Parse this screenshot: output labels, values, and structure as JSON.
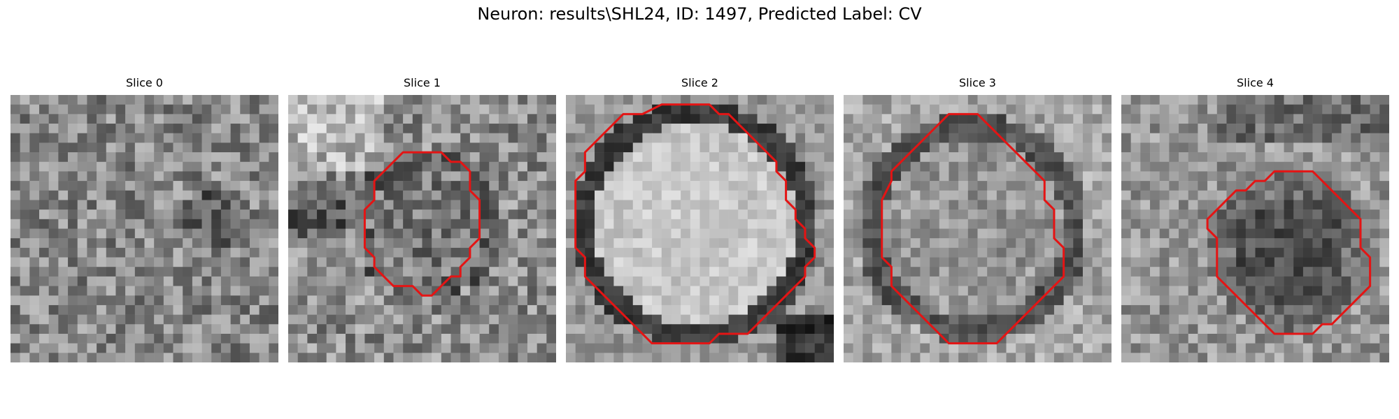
{
  "figure": {
    "title": "Neuron: results\\SHL24, ID: 1497, Predicted Label: CV"
  },
  "colors": {
    "contour": "#e41414",
    "background": "#ffffff"
  },
  "slices": [
    {
      "title": "Slice 0",
      "pattern": "noise",
      "contour": null
    },
    {
      "title": "Slice 1",
      "pattern": "small-dark-vesicle",
      "contour": [
        [
          14,
          6
        ],
        [
          16,
          6
        ],
        [
          17,
          7
        ],
        [
          18,
          7
        ],
        [
          19,
          8
        ],
        [
          19,
          10
        ],
        [
          20,
          11
        ],
        [
          20,
          15
        ],
        [
          19,
          16
        ],
        [
          19,
          17
        ],
        [
          18,
          18
        ],
        [
          18,
          19
        ],
        [
          17,
          19
        ],
        [
          16,
          20
        ],
        [
          15,
          21
        ],
        [
          14,
          21
        ],
        [
          13,
          20
        ],
        [
          11,
          20
        ],
        [
          10,
          19
        ],
        [
          9,
          18
        ],
        [
          9,
          17
        ],
        [
          8,
          16
        ],
        [
          8,
          12
        ],
        [
          9,
          11
        ],
        [
          9,
          9
        ],
        [
          10,
          8
        ],
        [
          11,
          7
        ],
        [
          12,
          6
        ]
      ]
    },
    {
      "title": "Slice 2",
      "pattern": "large-bright-vesicle",
      "contour": [
        [
          10,
          1
        ],
        [
          15,
          1
        ],
        [
          16,
          2
        ],
        [
          17,
          2
        ],
        [
          18,
          3
        ],
        [
          19,
          4
        ],
        [
          20,
          5
        ],
        [
          21,
          6
        ],
        [
          22,
          7
        ],
        [
          22,
          8
        ],
        [
          23,
          9
        ],
        [
          23,
          11
        ],
        [
          24,
          12
        ],
        [
          24,
          13
        ],
        [
          25,
          14
        ],
        [
          25,
          15
        ],
        [
          26,
          16
        ],
        [
          26,
          17
        ],
        [
          25,
          18
        ],
        [
          25,
          19
        ],
        [
          24,
          20
        ],
        [
          23,
          21
        ],
        [
          22,
          22
        ],
        [
          21,
          23
        ],
        [
          20,
          24
        ],
        [
          19,
          25
        ],
        [
          16,
          25
        ],
        [
          15,
          26
        ],
        [
          9,
          26
        ],
        [
          7,
          24
        ],
        [
          6,
          23
        ],
        [
          5,
          22
        ],
        [
          4,
          21
        ],
        [
          3,
          20
        ],
        [
          2,
          19
        ],
        [
          2,
          17
        ],
        [
          1,
          16
        ],
        [
          1,
          9
        ],
        [
          2,
          8
        ],
        [
          2,
          6
        ],
        [
          3,
          5
        ],
        [
          4,
          4
        ],
        [
          5,
          3
        ],
        [
          6,
          2
        ],
        [
          8,
          2
        ]
      ]
    },
    {
      "title": "Slice 3",
      "pattern": "large-ring-vesicle",
      "contour": [
        [
          11,
          2
        ],
        [
          14,
          2
        ],
        [
          15,
          3
        ],
        [
          16,
          4
        ],
        [
          17,
          5
        ],
        [
          18,
          6
        ],
        [
          19,
          7
        ],
        [
          20,
          8
        ],
        [
          21,
          9
        ],
        [
          21,
          11
        ],
        [
          22,
          12
        ],
        [
          22,
          15
        ],
        [
          23,
          16
        ],
        [
          23,
          19
        ],
        [
          22,
          20
        ],
        [
          21,
          21
        ],
        [
          20,
          22
        ],
        [
          19,
          23
        ],
        [
          18,
          24
        ],
        [
          17,
          25
        ],
        [
          16,
          26
        ],
        [
          11,
          26
        ],
        [
          10,
          25
        ],
        [
          9,
          24
        ],
        [
          8,
          23
        ],
        [
          7,
          22
        ],
        [
          6,
          21
        ],
        [
          5,
          20
        ],
        [
          5,
          18
        ],
        [
          4,
          17
        ],
        [
          4,
          11
        ],
        [
          5,
          9
        ],
        [
          5,
          8
        ],
        [
          6,
          7
        ],
        [
          7,
          6
        ],
        [
          8,
          5
        ],
        [
          9,
          4
        ],
        [
          10,
          3
        ]
      ]
    },
    {
      "title": "Slice 4",
      "pattern": "dark-vesicle-lower-right",
      "contour": [
        [
          18,
          8
        ],
        [
          20,
          8
        ],
        [
          21,
          9
        ],
        [
          22,
          10
        ],
        [
          23,
          11
        ],
        [
          24,
          12
        ],
        [
          25,
          13
        ],
        [
          25,
          16
        ],
        [
          26,
          17
        ],
        [
          26,
          20
        ],
        [
          25,
          21
        ],
        [
          24,
          22
        ],
        [
          23,
          23
        ],
        [
          22,
          24
        ],
        [
          21,
          24
        ],
        [
          20,
          25
        ],
        [
          16,
          25
        ],
        [
          15,
          24
        ],
        [
          14,
          23
        ],
        [
          13,
          22
        ],
        [
          12,
          21
        ],
        [
          11,
          20
        ],
        [
          10,
          19
        ],
        [
          10,
          15
        ],
        [
          9,
          14
        ],
        [
          9,
          13
        ],
        [
          10,
          12
        ],
        [
          11,
          11
        ],
        [
          12,
          10
        ],
        [
          13,
          10
        ],
        [
          14,
          9
        ],
        [
          15,
          9
        ],
        [
          16,
          8
        ]
      ]
    }
  ]
}
